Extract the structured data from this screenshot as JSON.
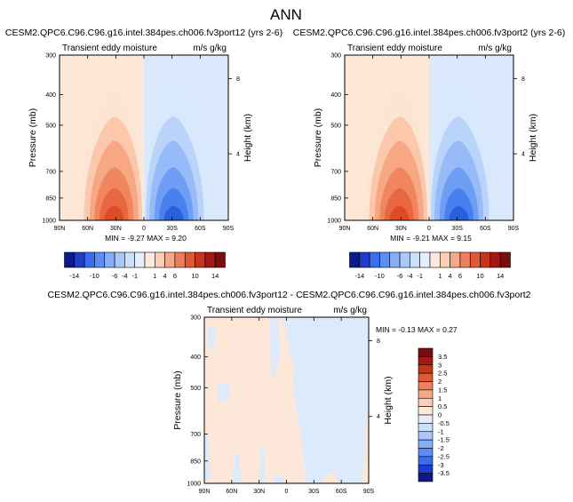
{
  "figure": {
    "title": "ANN"
  },
  "chart_data": [
    {
      "type": "heatmap",
      "panel": "top-left",
      "title": "CESM2.QPC6.C96.C96.g16.intel.384pes.ch006.fv3port12 (yrs 2-6)",
      "variable": "Transient eddy moisture",
      "units": "m/s g/kg",
      "xlabel": "",
      "ylabel": "Pressure (mb)",
      "ylabel_right": "Height (km)",
      "x_ticks": [
        "90N",
        "60N",
        "30N",
        "0",
        "30S",
        "60S",
        "90S"
      ],
      "y_ticks": [
        300,
        400,
        500,
        700,
        850,
        1000
      ],
      "y_ticks_right": [
        8,
        4
      ],
      "y_scale": "log",
      "ylim": [
        1000,
        300
      ],
      "stats": "MIN = -9.27   MAX =  9.20",
      "min": -9.27,
      "max": 9.2
    },
    {
      "type": "heatmap",
      "panel": "top-right",
      "title": "CESM2.QPC6.C96.C96.g16.intel.384pes.ch006.fv3port2 (yrs 2-6)",
      "variable": "Transient eddy moisture",
      "units": "m/s g/kg",
      "xlabel": "",
      "ylabel": "Pressure (mb)",
      "ylabel_right": "Height (km)",
      "x_ticks": [
        "90N",
        "60N",
        "30N",
        "0",
        "30S",
        "60S",
        "90S"
      ],
      "y_ticks": [
        300,
        400,
        500,
        700,
        850,
        1000
      ],
      "y_ticks_right": [
        8,
        4
      ],
      "y_scale": "log",
      "ylim": [
        1000,
        300
      ],
      "stats": "MIN = -9.21   MAX =  9.15",
      "min": -9.21,
      "max": 9.15
    },
    {
      "type": "heatmap",
      "panel": "bottom-difference",
      "title": "CESM2.QPC6.C96.C96.g16.intel.384pes.ch006.fv3port12 - CESM2.QPC6.C96.C96.g16.intel.384pes.ch006.fv3port2",
      "variable": "Transient eddy moisture",
      "units": "m/s g/kg",
      "xlabel": "",
      "ylabel": "Pressure (mb)",
      "ylabel_right": "Height (km)",
      "x_ticks": [
        "90N",
        "60N",
        "30N",
        "0",
        "30S",
        "60S",
        "90S"
      ],
      "y_ticks": [
        300,
        400,
        500,
        700,
        850,
        1000
      ],
      "y_ticks_right": [
        8,
        4
      ],
      "y_scale": "log",
      "ylim": [
        1000,
        300
      ],
      "stats": "MIN = -0.13   MAX =  0.27",
      "min": -0.13,
      "max": 0.27
    }
  ],
  "colorbar_top": {
    "levels": [
      "-14",
      "-10",
      "-6",
      "-4",
      "-1",
      "1",
      "4",
      "6",
      "10",
      "14"
    ],
    "colors": [
      "#0a1a8c",
      "#1f3dc9",
      "#3b6cf0",
      "#5a8df5",
      "#86adf7",
      "#a9c7fa",
      "#cddffc",
      "#e4eefd",
      "#fde9dd",
      "#fbcfb5",
      "#f6a98a",
      "#ee7f5d",
      "#e05836",
      "#c8341a",
      "#a31812",
      "#7a0d0d"
    ]
  },
  "colorbar_bottom": {
    "levels": [
      "3.5",
      "3",
      "2.5",
      "2",
      "1.5",
      "1",
      "0.5",
      "0",
      "-0.5",
      "-1",
      "-1.5",
      "-2",
      "-2.5",
      "-3",
      "-3.5"
    ],
    "colors": [
      "#7a0d0d",
      "#a31812",
      "#c8341a",
      "#e05836",
      "#ee7f5d",
      "#f6a98a",
      "#fbcfb5",
      "#fde9dd",
      "#e4eefd",
      "#cddffc",
      "#a9c7fa",
      "#86adf7",
      "#5a8df5",
      "#3b6cf0",
      "#1f3dc9",
      "#0a1a8c"
    ]
  },
  "field_colors": {
    "neg": [
      "#d8e8fd",
      "#b9d3fb",
      "#97baf8",
      "#6e9ef4",
      "#4a7ff0",
      "#2b5fdc"
    ],
    "pos": [
      "#fde5d4",
      "#fbc8ac",
      "#f7a883",
      "#f08660",
      "#e86640",
      "#dc4a26"
    ],
    "diff_neg": "#dceafc",
    "diff_pos": "#fde7d8"
  }
}
